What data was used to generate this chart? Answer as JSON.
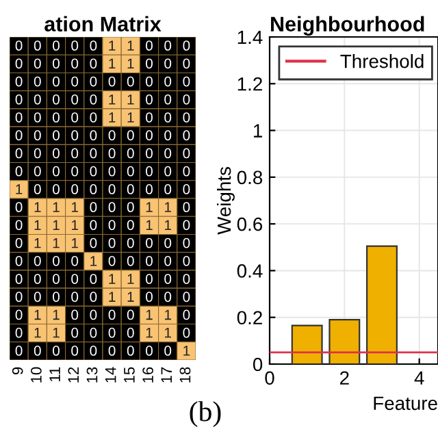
{
  "chart_data": [
    {
      "type": "heatmap",
      "title": "ation Matrix",
      "categories": [
        "9",
        "10",
        "11",
        "12",
        "13",
        "14",
        "15",
        "16",
        "17",
        "18"
      ],
      "y_categories": [
        null,
        null,
        null,
        null,
        null,
        null,
        null,
        null,
        null,
        null,
        null,
        null,
        null,
        null,
        null,
        null,
        null,
        null
      ],
      "cells": [
        [
          0,
          0,
          0,
          0,
          0,
          1,
          1,
          0,
          0,
          0
        ],
        [
          0,
          0,
          0,
          0,
          0,
          1,
          1,
          0,
          0,
          0
        ],
        [
          0,
          0,
          0,
          0,
          0,
          0,
          0,
          0,
          0,
          0
        ],
        [
          0,
          0,
          0,
          0,
          0,
          1,
          1,
          0,
          0,
          0
        ],
        [
          0,
          0,
          0,
          0,
          0,
          1,
          1,
          0,
          0,
          0
        ],
        [
          0,
          0,
          0,
          0,
          0,
          0,
          0,
          0,
          0,
          0
        ],
        [
          0,
          0,
          0,
          0,
          0,
          0,
          0,
          0,
          0,
          0
        ],
        [
          0,
          0,
          0,
          0,
          0,
          0,
          0,
          0,
          0,
          0
        ],
        [
          1,
          0,
          0,
          0,
          0,
          0,
          0,
          0,
          0,
          0
        ],
        [
          0,
          1,
          1,
          1,
          0,
          0,
          0,
          1,
          1,
          0
        ],
        [
          0,
          1,
          1,
          1,
          0,
          0,
          0,
          1,
          1,
          0
        ],
        [
          0,
          1,
          1,
          1,
          0,
          0,
          0,
          0,
          0,
          0
        ],
        [
          0,
          0,
          0,
          0,
          1,
          0,
          0,
          0,
          0,
          0
        ],
        [
          0,
          0,
          0,
          0,
          0,
          1,
          1,
          0,
          0,
          0
        ],
        [
          0,
          0,
          0,
          0,
          0,
          1,
          1,
          0,
          0,
          0
        ],
        [
          0,
          1,
          1,
          0,
          0,
          0,
          0,
          1,
          1,
          0
        ],
        [
          0,
          1,
          1,
          0,
          0,
          0,
          0,
          1,
          1,
          0
        ],
        [
          0,
          0,
          0,
          0,
          0,
          0,
          0,
          0,
          0,
          1
        ]
      ],
      "colors": [
        "#000000",
        "#f9c374"
      ],
      "data_labels": true,
      "tick_labels": "x"
    },
    {
      "type": "bar",
      "title": "Neighbourhood",
      "xlabel": "Feature",
      "ylabel": "Weights",
      "x": [
        1,
        2,
        3
      ],
      "values": [
        0.165,
        0.19,
        0.505
      ],
      "color": "#f0b000",
      "xlim": [
        0,
        4.5
      ],
      "xticks": [
        0,
        2,
        4
      ],
      "ylim": [
        0,
        1.4
      ],
      "yticks": [
        0,
        {
          "value": 0.2,
          "label": "0.2"
        },
        {
          "value": 0.4,
          "label": "0.4"
        },
        {
          "value": 0.6,
          "label": "0.6"
        },
        {
          "value": 0.8,
          "label": "0.8"
        },
        1,
        {
          "value": 1.2,
          "label": "1.2"
        },
        {
          "value": 1.4,
          "label": "1.4"
        }
      ],
      "grid": true,
      "legend": "top left",
      "ref_lines": [
        {
          "axis": "y",
          "value": 0.05,
          "label": "Threshold",
          "color": "#e0304a"
        }
      ],
      "annotations": [
        "(b)"
      ]
    }
  ]
}
